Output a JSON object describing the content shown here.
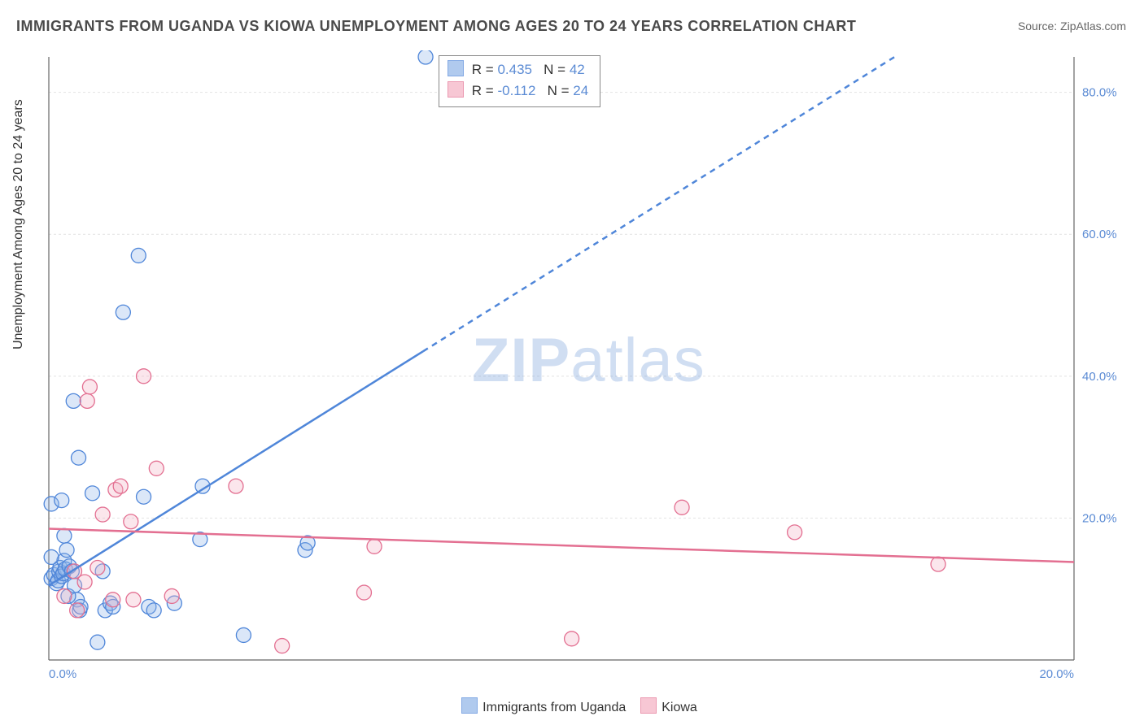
{
  "title": "IMMIGRANTS FROM UGANDA VS KIOWA UNEMPLOYMENT AMONG AGES 20 TO 24 YEARS CORRELATION CHART",
  "source_label": "Source: ",
  "source_value": "ZipAtlas.com",
  "y_axis_label": "Unemployment Among Ages 20 to 24 years",
  "watermark": {
    "bold": "ZIP",
    "rest": "atlas",
    "fontsize": 76
  },
  "chart": {
    "type": "scatter",
    "background_color": "#ffffff",
    "grid_color": "#e2e2e2",
    "axis_line_color": "#666666",
    "tick_label_color": "#5b8bd4",
    "xlim": [
      0.0,
      20.0
    ],
    "ylim": [
      0.0,
      85.0
    ],
    "xticks": [
      0.0,
      20.0
    ],
    "yticks": [
      20.0,
      40.0,
      60.0,
      80.0
    ],
    "xtick_format": "pct1",
    "ytick_format": "pct1",
    "marker_radius": 9,
    "marker_fill_opacity": 0.32,
    "marker_stroke_width": 1.3,
    "series": [
      {
        "key": "uganda",
        "label": "Immigrants from Uganda",
        "color_stroke": "#4f86d9",
        "color_fill": "#8fb4e8",
        "R": "0.435",
        "N": "42",
        "trend": {
          "solid": {
            "x1": 0.0,
            "y1": 10.5,
            "x2": 7.3,
            "y2": 43.5
          },
          "dashed": {
            "x1": 7.3,
            "y1": 43.5,
            "x2": 16.5,
            "y2": 85.0
          },
          "width": 2.5,
          "dash": "7 6"
        },
        "points": [
          [
            0.05,
            11.5
          ],
          [
            0.1,
            12.0
          ],
          [
            0.15,
            10.8
          ],
          [
            0.18,
            11.2
          ],
          [
            0.2,
            12.5
          ],
          [
            0.22,
            13.0
          ],
          [
            0.25,
            11.8
          ],
          [
            0.28,
            12.2
          ],
          [
            0.3,
            14.0
          ],
          [
            0.32,
            12.8
          ],
          [
            0.05,
            22.0
          ],
          [
            0.05,
            14.5
          ],
          [
            0.55,
            8.5
          ],
          [
            0.6,
            7.0
          ],
          [
            0.62,
            7.5
          ],
          [
            0.95,
            2.5
          ],
          [
            1.05,
            12.5
          ],
          [
            1.1,
            7.0
          ],
          [
            1.2,
            8.0
          ],
          [
            1.25,
            7.5
          ],
          [
            0.35,
            15.5
          ],
          [
            0.3,
            17.5
          ],
          [
            0.25,
            22.5
          ],
          [
            0.38,
            9.0
          ],
          [
            0.4,
            13.2
          ],
          [
            0.85,
            23.5
          ],
          [
            0.58,
            28.5
          ],
          [
            0.48,
            36.5
          ],
          [
            1.85,
            23.0
          ],
          [
            1.95,
            7.5
          ],
          [
            2.05,
            7.0
          ],
          [
            2.45,
            8.0
          ],
          [
            2.95,
            17.0
          ],
          [
            3.0,
            24.5
          ],
          [
            3.8,
            3.5
          ],
          [
            1.45,
            49.0
          ],
          [
            1.75,
            57.0
          ],
          [
            5.0,
            15.5
          ],
          [
            5.05,
            16.5
          ],
          [
            7.35,
            85.0
          ],
          [
            0.45,
            12.5
          ],
          [
            0.5,
            10.5
          ]
        ]
      },
      {
        "key": "kiowa",
        "label": "Kiowa",
        "color_stroke": "#e36f91",
        "color_fill": "#f4b0c3",
        "R": "-0.112",
        "N": "24",
        "trend": {
          "solid": {
            "x1": 0.0,
            "y1": 18.5,
            "x2": 20.0,
            "y2": 13.8
          },
          "dashed": null,
          "width": 2.5
        },
        "points": [
          [
            0.3,
            9.0
          ],
          [
            0.5,
            12.5
          ],
          [
            0.55,
            7.0
          ],
          [
            0.7,
            11.0
          ],
          [
            0.75,
            36.5
          ],
          [
            0.8,
            38.5
          ],
          [
            1.25,
            8.5
          ],
          [
            1.3,
            24.0
          ],
          [
            1.4,
            24.5
          ],
          [
            1.6,
            19.5
          ],
          [
            1.65,
            8.5
          ],
          [
            1.85,
            40.0
          ],
          [
            2.1,
            27.0
          ],
          [
            2.4,
            9.0
          ],
          [
            3.65,
            24.5
          ],
          [
            4.55,
            2.0
          ],
          [
            6.15,
            9.5
          ],
          [
            6.35,
            16.0
          ],
          [
            10.2,
            3.0
          ],
          [
            12.35,
            21.5
          ],
          [
            14.55,
            18.0
          ],
          [
            17.35,
            13.5
          ],
          [
            0.95,
            13.0
          ],
          [
            1.05,
            20.5
          ]
        ]
      }
    ]
  },
  "stat_legend": {
    "R_label": "R = ",
    "N_label": "N = ",
    "value_color": "#5b8bd4"
  }
}
